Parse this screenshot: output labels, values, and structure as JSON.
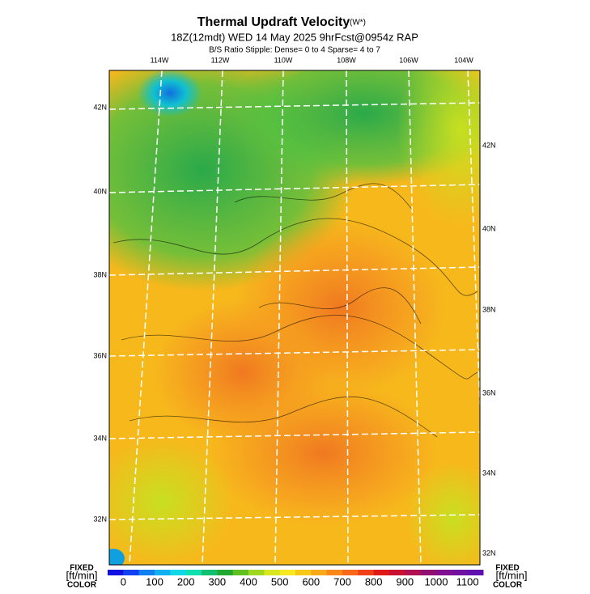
{
  "header": {
    "title": "Thermal Updraft Velocity",
    "units": "(W*)",
    "subtitle": "18Z(12mdt) WED 14 May 2025 9hrFcst@0954z RAP",
    "stipple": "B/S Ratio Stipple:  Dense= 0 to 4  Sparse= 4 to 7"
  },
  "map": {
    "lon_labels": [
      "114W",
      "112W",
      "110W",
      "108W",
      "106W",
      "104W"
    ],
    "lat_labels_left": [
      "42N",
      "40N",
      "38N",
      "36N",
      "34N",
      "32N"
    ],
    "lat_labels_right": [
      "42N",
      "40N",
      "38N",
      "36N",
      "34N",
      "32N"
    ]
  },
  "colorbar": {
    "labels": [
      "0",
      "100",
      "200",
      "300",
      "400",
      "500",
      "600",
      "700",
      "800",
      "900",
      "1000",
      "1100"
    ],
    "colors": [
      "#1010e0",
      "#1040f0",
      "#1080f0",
      "#10b0f0",
      "#10d8e8",
      "#10e0b0",
      "#10c070",
      "#20a830",
      "#60c020",
      "#a0d820",
      "#d8e820",
      "#f8e820",
      "#f8c818",
      "#f8a818",
      "#f88818",
      "#f86818",
      "#f04018",
      "#e01818",
      "#c81030",
      "#b01050",
      "#901070",
      "#801090",
      "#7010a0",
      "#6010b0"
    ],
    "left": [
      "FIXED",
      "[ft/min]",
      "COLOR"
    ],
    "right": [
      "FIXED",
      "[ft/min]",
      "COLOR"
    ]
  }
}
